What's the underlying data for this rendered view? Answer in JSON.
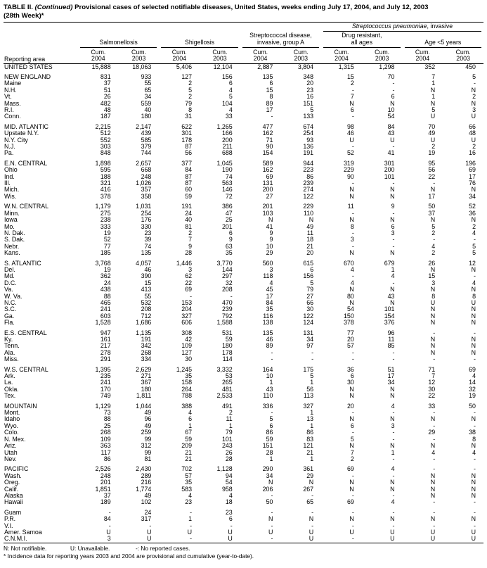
{
  "title": {
    "part1": "TABLE II. ",
    "part2": "(Continued)",
    "part3": " Provisional cases of selected notifiable diseases, United States, weeks ending July 17, 2004, and July 12, 2003",
    "line2": "(28th Week)*"
  },
  "header": {
    "reporting_area": "Reporting area",
    "salmonellosis": "Salmonellosis",
    "shigellosis": "Shigellosis",
    "strep_a_line1": "Streptococcal disease,",
    "strep_a_line2": "invasive, group A",
    "pneumo_italic": "Streptococcus pneumoniae",
    "pneumo_rest": ", invasive",
    "drug_resistant_line1": "Drug resistant,",
    "drug_resistant_line2": "all ages",
    "age_under5": "Age <5 years",
    "cum": "Cum.",
    "y2004": "2004",
    "y2003": "2003"
  },
  "table": {
    "groups": [
      {
        "rows": [
          [
            "UNITED STATES",
            "15,888",
            "18,063",
            "5,406",
            "12,104",
            "2,887",
            "3,804",
            "1,315",
            "1,298",
            "352",
            "450"
          ]
        ]
      },
      {
        "rows": [
          [
            "NEW ENGLAND",
            "831",
            "933",
            "127",
            "156",
            "135",
            "348",
            "15",
            "70",
            "7",
            "5"
          ],
          [
            "Maine",
            "37",
            "55",
            "2",
            "6",
            "6",
            "20",
            "2",
            "-",
            "1",
            "-"
          ],
          [
            "N.H.",
            "51",
            "65",
            "5",
            "4",
            "15",
            "23",
            "-",
            "-",
            "N",
            "N"
          ],
          [
            "Vt.",
            "26",
            "34",
            "2",
            "5",
            "8",
            "16",
            "7",
            "6",
            "1",
            "2"
          ],
          [
            "Mass.",
            "482",
            "559",
            "79",
            "104",
            "89",
            "151",
            "N",
            "N",
            "N",
            "N"
          ],
          [
            "R.I.",
            "48",
            "40",
            "8",
            "4",
            "17",
            "5",
            "6",
            "10",
            "5",
            "3"
          ],
          [
            "Conn.",
            "187",
            "180",
            "31",
            "33",
            "-",
            "133",
            "-",
            "54",
            "U",
            "U"
          ]
        ]
      },
      {
        "rows": [
          [
            "MID. ATLANTIC",
            "2,215",
            "2,147",
            "622",
            "1,265",
            "477",
            "674",
            "98",
            "84",
            "70",
            "66"
          ],
          [
            "Upstate N.Y.",
            "512",
            "439",
            "301",
            "166",
            "162",
            "254",
            "46",
            "43",
            "49",
            "48"
          ],
          [
            "N.Y. City",
            "552",
            "585",
            "178",
            "200",
            "71",
            "93",
            "U",
            "U",
            "U",
            "U"
          ],
          [
            "N.J.",
            "303",
            "379",
            "87",
            "211",
            "90",
            "136",
            "-",
            "-",
            "2",
            "2"
          ],
          [
            "Pa.",
            "848",
            "744",
            "56",
            "688",
            "154",
            "191",
            "52",
            "41",
            "19",
            "16"
          ]
        ]
      },
      {
        "rows": [
          [
            "E.N. CENTRAL",
            "1,898",
            "2,657",
            "377",
            "1,045",
            "589",
            "944",
            "319",
            "301",
            "95",
            "196"
          ],
          [
            "Ohio",
            "595",
            "668",
            "84",
            "190",
            "162",
            "223",
            "229",
            "200",
            "56",
            "69"
          ],
          [
            "Ind.",
            "188",
            "248",
            "87",
            "74",
            "69",
            "86",
            "90",
            "101",
            "22",
            "17"
          ],
          [
            "Ill.",
            "321",
            "1,026",
            "87",
            "563",
            "131",
            "239",
            "-",
            "-",
            "-",
            "76"
          ],
          [
            "Mich.",
            "416",
            "357",
            "60",
            "146",
            "200",
            "274",
            "N",
            "N",
            "N",
            "N"
          ],
          [
            "Wis.",
            "378",
            "358",
            "59",
            "72",
            "27",
            "122",
            "N",
            "N",
            "17",
            "34"
          ]
        ]
      },
      {
        "rows": [
          [
            "W.N. CENTRAL",
            "1,179",
            "1,031",
            "191",
            "386",
            "201",
            "229",
            "11",
            "9",
            "50",
            "52"
          ],
          [
            "Minn.",
            "275",
            "254",
            "24",
            "47",
            "103",
            "110",
            "-",
            "-",
            "37",
            "36"
          ],
          [
            "Iowa",
            "238",
            "176",
            "40",
            "25",
            "N",
            "N",
            "N",
            "N",
            "N",
            "N"
          ],
          [
            "Mo.",
            "333",
            "330",
            "81",
            "201",
            "41",
            "49",
            "8",
            "6",
            "5",
            "2"
          ],
          [
            "N. Dak.",
            "19",
            "23",
            "2",
            "6",
            "9",
            "11",
            "-",
            "3",
            "2",
            "4"
          ],
          [
            "S. Dak.",
            "52",
            "39",
            "7",
            "9",
            "9",
            "18",
            "3",
            "-",
            "-",
            "-"
          ],
          [
            "Nebr.",
            "77",
            "74",
            "9",
            "63",
            "10",
            "21",
            "-",
            "-",
            "4",
            "5"
          ],
          [
            "Kans.",
            "185",
            "135",
            "28",
            "35",
            "29",
            "20",
            "N",
            "N",
            "2",
            "5"
          ]
        ]
      },
      {
        "rows": [
          [
            "S. ATLANTIC",
            "3,768",
            "4,057",
            "1,446",
            "3,770",
            "560",
            "615",
            "670",
            "679",
            "26",
            "12"
          ],
          [
            "Del.",
            "19",
            "46",
            "3",
            "144",
            "3",
            "6",
            "4",
            "1",
            "N",
            "N"
          ],
          [
            "Md.",
            "362",
            "390",
            "62",
            "297",
            "118",
            "156",
            "-",
            "4",
            "15",
            "-"
          ],
          [
            "D.C.",
            "24",
            "15",
            "22",
            "32",
            "4",
            "5",
            "4",
            "-",
            "3",
            "4"
          ],
          [
            "Va.",
            "438",
            "413",
            "69",
            "208",
            "45",
            "79",
            "N",
            "N",
            "N",
            "N"
          ],
          [
            "W. Va.",
            "88",
            "55",
            "-",
            "-",
            "17",
            "27",
            "80",
            "43",
            "8",
            "8"
          ],
          [
            "N.C.",
            "465",
            "532",
            "153",
            "470",
            "84",
            "66",
            "N",
            "N",
            "U",
            "U"
          ],
          [
            "S.C.",
            "241",
            "208",
            "204",
            "239",
            "35",
            "30",
            "54",
            "101",
            "N",
            "N"
          ],
          [
            "Ga.",
            "603",
            "712",
            "327",
            "792",
            "116",
            "122",
            "150",
            "154",
            "N",
            "N"
          ],
          [
            "Fla.",
            "1,528",
            "1,686",
            "606",
            "1,588",
            "138",
            "124",
            "378",
            "376",
            "N",
            "N"
          ]
        ]
      },
      {
        "rows": [
          [
            "E.S. CENTRAL",
            "947",
            "1,135",
            "308",
            "531",
            "135",
            "131",
            "77",
            "96",
            "-",
            "-"
          ],
          [
            "Ky.",
            "161",
            "191",
            "42",
            "59",
            "46",
            "34",
            "20",
            "11",
            "N",
            "N"
          ],
          [
            "Tenn.",
            "217",
            "342",
            "109",
            "180",
            "89",
            "97",
            "57",
            "85",
            "N",
            "N"
          ],
          [
            "Ala.",
            "278",
            "268",
            "127",
            "178",
            "-",
            "-",
            "-",
            "-",
            "N",
            "N"
          ],
          [
            "Miss.",
            "291",
            "334",
            "30",
            "114",
            "-",
            "-",
            "-",
            "-",
            "-",
            "-"
          ]
        ]
      },
      {
        "rows": [
          [
            "W.S. CENTRAL",
            "1,395",
            "2,629",
            "1,245",
            "3,332",
            "164",
            "175",
            "36",
            "51",
            "71",
            "69"
          ],
          [
            "Ark.",
            "235",
            "271",
            "35",
            "53",
            "10",
            "5",
            "6",
            "17",
            "7",
            "4"
          ],
          [
            "La.",
            "241",
            "367",
            "158",
            "265",
            "1",
            "1",
            "30",
            "34",
            "12",
            "14"
          ],
          [
            "Okla.",
            "170",
            "180",
            "264",
            "481",
            "43",
            "56",
            "N",
            "N",
            "30",
            "32"
          ],
          [
            "Tex.",
            "749",
            "1,811",
            "788",
            "2,533",
            "110",
            "113",
            "N",
            "N",
            "22",
            "19"
          ]
        ]
      },
      {
        "rows": [
          [
            "MOUNTAIN",
            "1,129",
            "1,044",
            "388",
            "491",
            "336",
            "327",
            "20",
            "4",
            "33",
            "50"
          ],
          [
            "Mont.",
            "73",
            "49",
            "4",
            "2",
            "-",
            "1",
            "-",
            "-",
            "-",
            "-"
          ],
          [
            "Idaho",
            "88",
            "96",
            "6",
            "11",
            "5",
            "13",
            "N",
            "N",
            "N",
            "N"
          ],
          [
            "Wyo.",
            "25",
            "49",
            "1",
            "1",
            "6",
            "1",
            "6",
            "3",
            "-",
            "-"
          ],
          [
            "Colo.",
            "268",
            "259",
            "67",
            "79",
            "86",
            "86",
            "-",
            "-",
            "29",
            "38"
          ],
          [
            "N. Mex.",
            "109",
            "99",
            "59",
            "101",
            "59",
            "83",
            "5",
            "-",
            "-",
            "8"
          ],
          [
            "Ariz.",
            "363",
            "312",
            "209",
            "243",
            "151",
            "121",
            "N",
            "N",
            "N",
            "N"
          ],
          [
            "Utah",
            "117",
            "99",
            "21",
            "26",
            "28",
            "21",
            "7",
            "1",
            "4",
            "4"
          ],
          [
            "Nev.",
            "86",
            "81",
            "21",
            "28",
            "1",
            "1",
            "2",
            "-",
            "-",
            "-"
          ]
        ]
      },
      {
        "rows": [
          [
            "PACIFIC",
            "2,526",
            "2,430",
            "702",
            "1,128",
            "290",
            "361",
            "69",
            "4",
            "-",
            "-"
          ],
          [
            "Wash.",
            "248",
            "289",
            "57",
            "94",
            "34",
            "29",
            "-",
            "-",
            "N",
            "N"
          ],
          [
            "Oreg.",
            "201",
            "216",
            "35",
            "54",
            "N",
            "N",
            "N",
            "N",
            "N",
            "N"
          ],
          [
            "Calif.",
            "1,851",
            "1,774",
            "583",
            "958",
            "206",
            "267",
            "N",
            "N",
            "N",
            "N"
          ],
          [
            "Alaska",
            "37",
            "49",
            "4",
            "4",
            "-",
            "-",
            "-",
            "-",
            "N",
            "N"
          ],
          [
            "Hawaii",
            "189",
            "102",
            "23",
            "18",
            "50",
            "65",
            "69",
            "4",
            "-",
            "-"
          ]
        ]
      },
      {
        "rows": [
          [
            "Guam",
            "-",
            "24",
            "-",
            "23",
            "-",
            "-",
            "-",
            "-",
            "-",
            "-"
          ],
          [
            "P.R.",
            "84",
            "317",
            "1",
            "6",
            "N",
            "N",
            "N",
            "N",
            "N",
            "N"
          ],
          [
            "V.I.",
            "-",
            "-",
            "-",
            "-",
            "-",
            "-",
            "-",
            "-",
            "-",
            "-"
          ],
          [
            "Amer. Samoa",
            "U",
            "U",
            "U",
            "U",
            "U",
            "U",
            "U",
            "U",
            "U",
            "U"
          ],
          [
            "C.N.M.I.",
            "3",
            "U",
            "-",
            "U",
            "-",
            "U",
            "-",
            "U",
            "U",
            "U"
          ]
        ]
      }
    ]
  },
  "footer": {
    "legend_n": "N: Not notifiable.",
    "legend_u": "U: Unavailable.",
    "legend_dash": "-: No reported cases.",
    "note": "* Incidence data for reporting years 2003 and 2004 are provisional and cumulative (year-to-date)."
  }
}
